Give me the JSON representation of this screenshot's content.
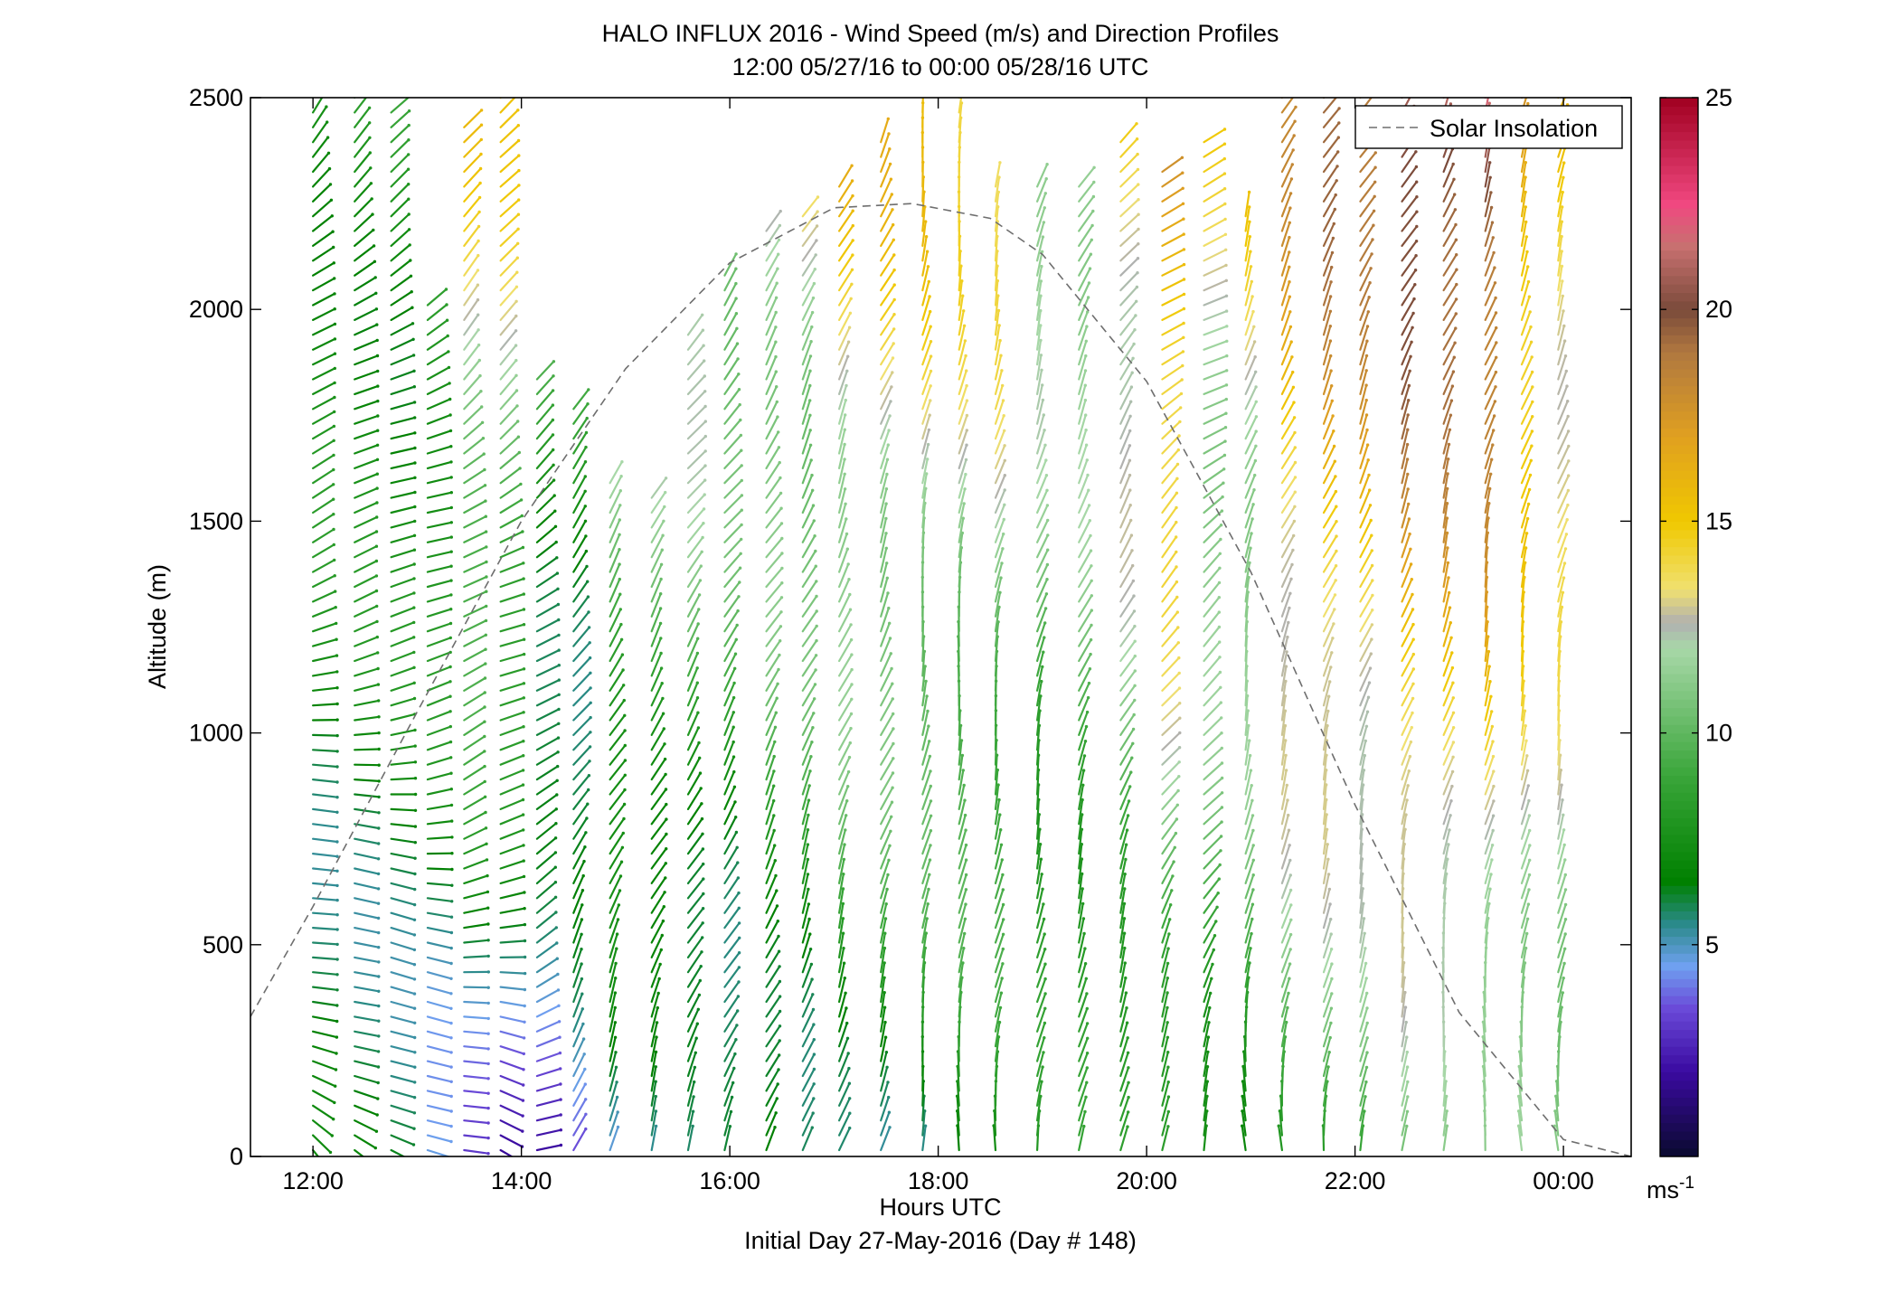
{
  "chart_data": {
    "type": "scatter",
    "title": "HALO INFLUX 2016 - Wind Speed (m/s) and Direction Profiles",
    "subtitle": "12:00 05/27/16 to 00:00 05/28/16  UTC",
    "xlabel": "Hours UTC",
    "footer": "Initial Day 27-May-2016 (Day # 148)",
    "ylabel": "Altitude (m)",
    "xlim": [
      11.4,
      24.65
    ],
    "ylim": [
      0,
      2500
    ],
    "x_ticks": [
      12,
      14,
      16,
      18,
      20,
      22,
      24
    ],
    "x_tick_labels": [
      "12:00",
      "14:00",
      "16:00",
      "18:00",
      "20:00",
      "22:00",
      "00:00"
    ],
    "y_ticks": [
      0,
      500,
      1000,
      1500,
      2000,
      2500
    ],
    "y_tick_labels": [
      "0",
      "500",
      "1000",
      "1500",
      "2000",
      "2500"
    ],
    "grid": false,
    "legend": {
      "position": "top-right",
      "entries": [
        {
          "label": "Solar Insolation",
          "style": "dashed",
          "color": "#7f7f7f"
        }
      ]
    },
    "colorbar": {
      "range": [
        0,
        25
      ],
      "ticks": [
        5,
        10,
        15,
        20,
        25
      ],
      "tick_labels": [
        "5",
        "10",
        "15",
        "20",
        "25"
      ],
      "unit_label": "ms",
      "unit_exponent": "-1",
      "stops": [
        {
          "value": 0,
          "color": "#0a0a2e"
        },
        {
          "value": 2,
          "color": "#3a0aa0"
        },
        {
          "value": 3.5,
          "color": "#6a4ad8"
        },
        {
          "value": 4.5,
          "color": "#6fa0f0"
        },
        {
          "value": 5.5,
          "color": "#2a8a8a"
        },
        {
          "value": 6.5,
          "color": "#008000"
        },
        {
          "value": 9,
          "color": "#3aa63a"
        },
        {
          "value": 12,
          "color": "#a8d8a8"
        },
        {
          "value": 12.6,
          "color": "#b0b0b0"
        },
        {
          "value": 13.4,
          "color": "#f0e070"
        },
        {
          "value": 15,
          "color": "#f0c800"
        },
        {
          "value": 17,
          "color": "#e0a020"
        },
        {
          "value": 19,
          "color": "#b07840"
        },
        {
          "value": 20,
          "color": "#7a4a3a"
        },
        {
          "value": 21.5,
          "color": "#c87070"
        },
        {
          "value": 22.5,
          "color": "#f04880"
        },
        {
          "value": 25,
          "color": "#a00020"
        }
      ]
    },
    "solar_insolation": {
      "x": [
        11.4,
        12.0,
        13.0,
        14.0,
        15.0,
        16.0,
        17.0,
        17.75,
        18.5,
        19.0,
        20.0,
        21.0,
        22.0,
        23.0,
        24.0,
        24.65
      ],
      "y": [
        330,
        590,
        1050,
        1500,
        1860,
        2110,
        2240,
        2250,
        2215,
        2130,
        1830,
        1380,
        830,
        340,
        40,
        0
      ]
    },
    "wind_profiles": [
      {
        "t": 12.0,
        "alt_top": 2500,
        "dir_low": 320,
        "dir_high": 220,
        "speed_low": 6,
        "speed_high": 8
      },
      {
        "t": 12.4,
        "alt_top": 2500,
        "dir_low": 315,
        "dir_high": 225,
        "speed_low": 6,
        "speed_high": 8
      },
      {
        "t": 12.75,
        "alt_top": 2480,
        "dir_low": 310,
        "dir_high": 230,
        "speed_low": 6,
        "speed_high": 8
      },
      {
        "t": 13.1,
        "alt_top": 2030,
        "dir_low": 300,
        "dir_high": 230,
        "speed_low": 5,
        "speed_high": 10
      },
      {
        "t": 13.45,
        "alt_top": 2440,
        "dir_low": 285,
        "dir_high": 215,
        "speed_low": 4,
        "speed_high": 15
      },
      {
        "t": 13.8,
        "alt_top": 2500,
        "dir_low": 300,
        "dir_high": 215,
        "speed_low": 3,
        "speed_high": 15
      },
      {
        "t": 14.15,
        "alt_top": 1840,
        "dir_low": 250,
        "dir_high": 225,
        "speed_low": 3,
        "speed_high": 11
      },
      {
        "t": 14.5,
        "alt_top": 1790,
        "dir_low": 200,
        "dir_high": 225,
        "speed_low": 4,
        "speed_high": 10
      },
      {
        "t": 14.85,
        "alt_top": 1620,
        "dir_low": 195,
        "dir_high": 220,
        "speed_low": 4.5,
        "speed_high": 15
      },
      {
        "t": 15.25,
        "alt_top": 1560,
        "dir_low": 195,
        "dir_high": 220,
        "speed_low": 4.5,
        "speed_high": 15
      },
      {
        "t": 15.6,
        "alt_top": 1950,
        "dir_low": 200,
        "dir_high": 220,
        "speed_low": 4.5,
        "speed_high": 15
      },
      {
        "t": 15.95,
        "alt_top": 2080,
        "dir_low": 200,
        "dir_high": 220,
        "speed_low": 5,
        "speed_high": 13
      },
      {
        "t": 16.35,
        "alt_top": 2200,
        "dir_low": 200,
        "dir_high": 215,
        "speed_low": 6,
        "speed_high": 14
      },
      {
        "t": 16.7,
        "alt_top": 2230,
        "dir_low": 195,
        "dir_high": 210,
        "speed_low": 6,
        "speed_high": 14
      },
      {
        "t": 17.05,
        "alt_top": 2310,
        "dir_low": 195,
        "dir_high": 205,
        "speed_low": 6.5,
        "speed_high": 16
      },
      {
        "t": 17.45,
        "alt_top": 2420,
        "dir_low": 195,
        "dir_high": 205,
        "speed_low": 6.5,
        "speed_high": 16
      },
      {
        "t": 17.85,
        "alt_top": 2500,
        "dir_low": 190,
        "dir_high": 190,
        "speed_low": 6.5,
        "speed_high": 16
      },
      {
        "t": 18.2,
        "alt_top": 2500,
        "dir_low": 185,
        "dir_high": 190,
        "speed_low": 7,
        "speed_high": 15
      },
      {
        "t": 18.55,
        "alt_top": 2300,
        "dir_low": 185,
        "dir_high": 195,
        "speed_low": 7,
        "speed_high": 15
      },
      {
        "t": 18.95,
        "alt_top": 2300,
        "dir_low": 185,
        "dir_high": 200,
        "speed_low": 7,
        "speed_high": 13
      },
      {
        "t": 19.35,
        "alt_top": 2300,
        "dir_low": 185,
        "dir_high": 210,
        "speed_low": 7.5,
        "speed_high": 13
      },
      {
        "t": 19.75,
        "alt_top": 2400,
        "dir_low": 185,
        "dir_high": 220,
        "speed_low": 7.5,
        "speed_high": 15
      },
      {
        "t": 20.15,
        "alt_top": 2330,
        "dir_low": 185,
        "dir_high": 240,
        "speed_low": 8,
        "speed_high": 18
      },
      {
        "t": 20.55,
        "alt_top": 2400,
        "dir_low": 185,
        "dir_high": 250,
        "speed_low": 8,
        "speed_high": 14
      },
      {
        "t": 20.95,
        "alt_top": 2220,
        "dir_low": 180,
        "dir_high": 200,
        "speed_low": 8,
        "speed_high": 15
      },
      {
        "t": 21.3,
        "alt_top": 2500,
        "dir_low": 180,
        "dir_high": 210,
        "speed_low": 9,
        "speed_high": 18
      },
      {
        "t": 21.7,
        "alt_top": 2500,
        "dir_low": 180,
        "dir_high": 210,
        "speed_low": 9,
        "speed_high": 20
      },
      {
        "t": 22.05,
        "alt_top": 2500,
        "dir_low": 180,
        "dir_high": 210,
        "speed_low": 9,
        "speed_high": 20
      },
      {
        "t": 22.45,
        "alt_top": 2500,
        "dir_low": 180,
        "dir_high": 210,
        "speed_low": 10,
        "speed_high": 22
      },
      {
        "t": 22.85,
        "alt_top": 2500,
        "dir_low": 180,
        "dir_high": 205,
        "speed_low": 10,
        "speed_high": 22
      },
      {
        "t": 23.25,
        "alt_top": 2500,
        "dir_low": 180,
        "dir_high": 200,
        "speed_low": 10,
        "speed_high": 22
      },
      {
        "t": 23.6,
        "alt_top": 2500,
        "dir_low": 180,
        "dir_high": 200,
        "speed_low": 11,
        "speed_high": 17
      },
      {
        "t": 23.95,
        "alt_top": 2500,
        "dir_low": 180,
        "dir_high": 200,
        "speed_low": 11,
        "speed_high": 15
      }
    ]
  }
}
